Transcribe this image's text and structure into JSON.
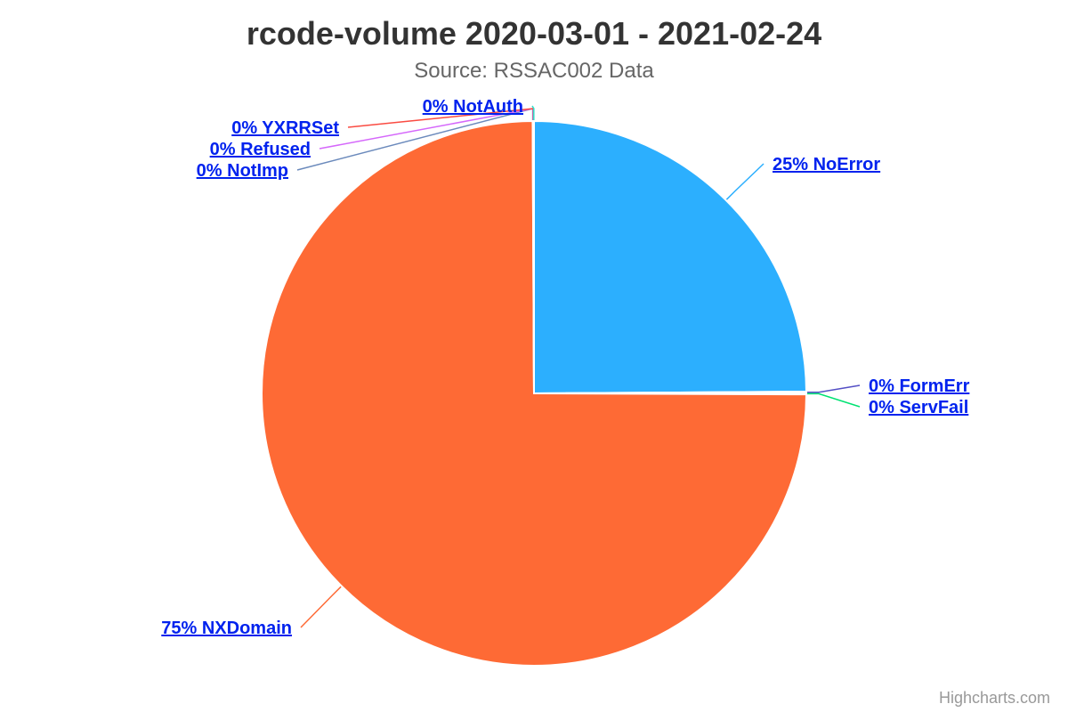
{
  "chart_data": {
    "type": "pie",
    "title": "rcode-volume 2020-03-01 - 2021-02-24",
    "subtitle": "Source: RSSAC002 Data",
    "series": [
      {
        "data": [
          {
            "name": "NoError",
            "value": 24.9,
            "label": "25% NoError",
            "color": "#2caffe"
          },
          {
            "name": "FormErr",
            "value": 0.08,
            "label": "0% FormErr",
            "color": "#544fc5"
          },
          {
            "name": "ServFail",
            "value": 0.08,
            "label": "0% ServFail",
            "color": "#00e272"
          },
          {
            "name": "NXDomain",
            "value": 74.86,
            "label": "75% NXDomain",
            "color": "#fe6a35"
          },
          {
            "name": "NotImp",
            "value": 0.02,
            "label": "0% NotImp",
            "color": "#6b8abc"
          },
          {
            "name": "Refused",
            "value": 0.02,
            "label": "0% Refused",
            "color": "#d568fb"
          },
          {
            "name": "YXRRSet",
            "value": 0.02,
            "label": "0% YXRRSet",
            "color": "#fa4b42"
          },
          {
            "name": "NotAuth",
            "value": 0.02,
            "label": "0% NotAuth",
            "color": "#2ee0ca"
          }
        ]
      }
    ]
  },
  "credits": "Highcharts.com"
}
